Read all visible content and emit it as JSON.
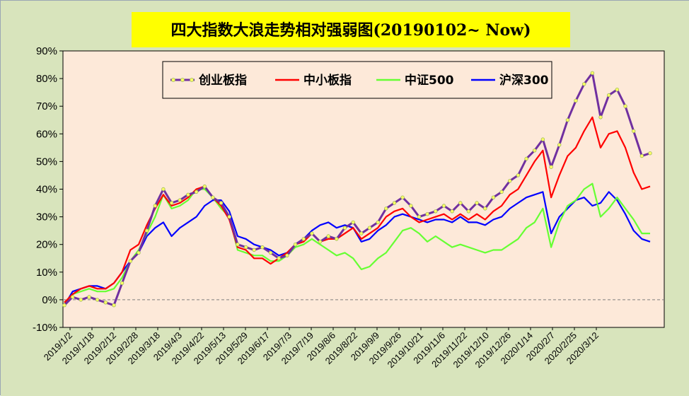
{
  "chart_data": {
    "type": "line",
    "title": "四大指数大浪走势相对强弱图(20190102~ Now)",
    "xlabel": "",
    "ylabel": "",
    "ylim": [
      -10,
      90
    ],
    "y_ticks": [
      "-10%",
      "0%",
      "10%",
      "20%",
      "30%",
      "40%",
      "50%",
      "60%",
      "70%",
      "80%",
      "90%"
    ],
    "x_labels": [
      "2019/1/2",
      "2019/1/18",
      "2019/2/12",
      "2019/2/28",
      "2019/3/18",
      "2019/4/3",
      "2019/4/22",
      "2019/5/13",
      "2019/5/29",
      "2019/6/17",
      "2019/7/3",
      "2019/7/19",
      "2019/8/6",
      "2019/8/22",
      "2019/9/9",
      "2019/9/26",
      "2019/10/21",
      "2019/11/6",
      "2019/11/22",
      "2019/12/10",
      "2019/12/26",
      "2020/1/14",
      "2020/2/7",
      "2020/2/25",
      "2020/3/12"
    ],
    "legend_position": "top-left",
    "grid": false,
    "series": [
      {
        "name": "创业板指",
        "color": "#7030a0",
        "marker": "circle",
        "values": [
          -2,
          1,
          0,
          1,
          0,
          -1,
          -2,
          6,
          14,
          17,
          25,
          34,
          40,
          35,
          36,
          38,
          39,
          41,
          37,
          35,
          30,
          20,
          19,
          18,
          19,
          17,
          15,
          16,
          20,
          22,
          24,
          21,
          23,
          22,
          26,
          28,
          24,
          26,
          28,
          33,
          35,
          37,
          34,
          30,
          31,
          32,
          34,
          32,
          35,
          32,
          35,
          33,
          37,
          39,
          43,
          45,
          51,
          54,
          58,
          48,
          56,
          65,
          72,
          78,
          82,
          66,
          74,
          76,
          70,
          61,
          52,
          53
        ]
      },
      {
        "name": "中小板指",
        "color": "#ff0000",
        "marker": "none",
        "values": [
          -1,
          2,
          4,
          5,
          4,
          4,
          6,
          10,
          18,
          20,
          27,
          33,
          38,
          34,
          35,
          37,
          40,
          41,
          37,
          34,
          29,
          19,
          18,
          15,
          15,
          13,
          15,
          17,
          20,
          21,
          24,
          21,
          22,
          22,
          24,
          26,
          22,
          24,
          26,
          30,
          32,
          33,
          30,
          28,
          29,
          30,
          31,
          29,
          31,
          29,
          31,
          29,
          32,
          34,
          38,
          40,
          45,
          50,
          54,
          37,
          45,
          52,
          55,
          61,
          66,
          55,
          60,
          61,
          55,
          46,
          40,
          41
        ]
      },
      {
        "name": "中证500",
        "color": "#66ff33",
        "marker": "none",
        "values": [
          -1,
          2,
          3,
          4,
          3,
          3,
          4,
          8,
          14,
          18,
          24,
          30,
          38,
          33,
          34,
          36,
          40,
          40,
          37,
          33,
          30,
          18,
          17,
          16,
          16,
          14,
          14,
          16,
          19,
          20,
          22,
          20,
          18,
          16,
          17,
          15,
          11,
          12,
          15,
          17,
          21,
          25,
          26,
          24,
          21,
          23,
          21,
          19,
          20,
          19,
          18,
          17,
          18,
          18,
          20,
          22,
          26,
          28,
          33,
          19,
          28,
          34,
          36,
          40,
          42,
          30,
          33,
          37,
          33,
          29,
          24,
          24
        ]
      },
      {
        "name": "沪深300",
        "color": "#0000ff",
        "marker": "none",
        "values": [
          -2,
          3,
          4,
          5,
          5,
          4,
          6,
          10,
          14,
          17,
          23,
          26,
          28,
          23,
          26,
          28,
          30,
          34,
          36,
          36,
          32,
          23,
          22,
          20,
          19,
          18,
          16,
          17,
          20,
          22,
          25,
          27,
          28,
          26,
          27,
          26,
          21,
          22,
          25,
          27,
          30,
          31,
          30,
          29,
          28,
          29,
          29,
          28,
          30,
          28,
          28,
          27,
          29,
          30,
          33,
          35,
          37,
          38,
          39,
          24,
          30,
          33,
          36,
          37,
          34,
          35,
          39,
          36,
          31,
          25,
          22,
          21
        ]
      }
    ]
  }
}
